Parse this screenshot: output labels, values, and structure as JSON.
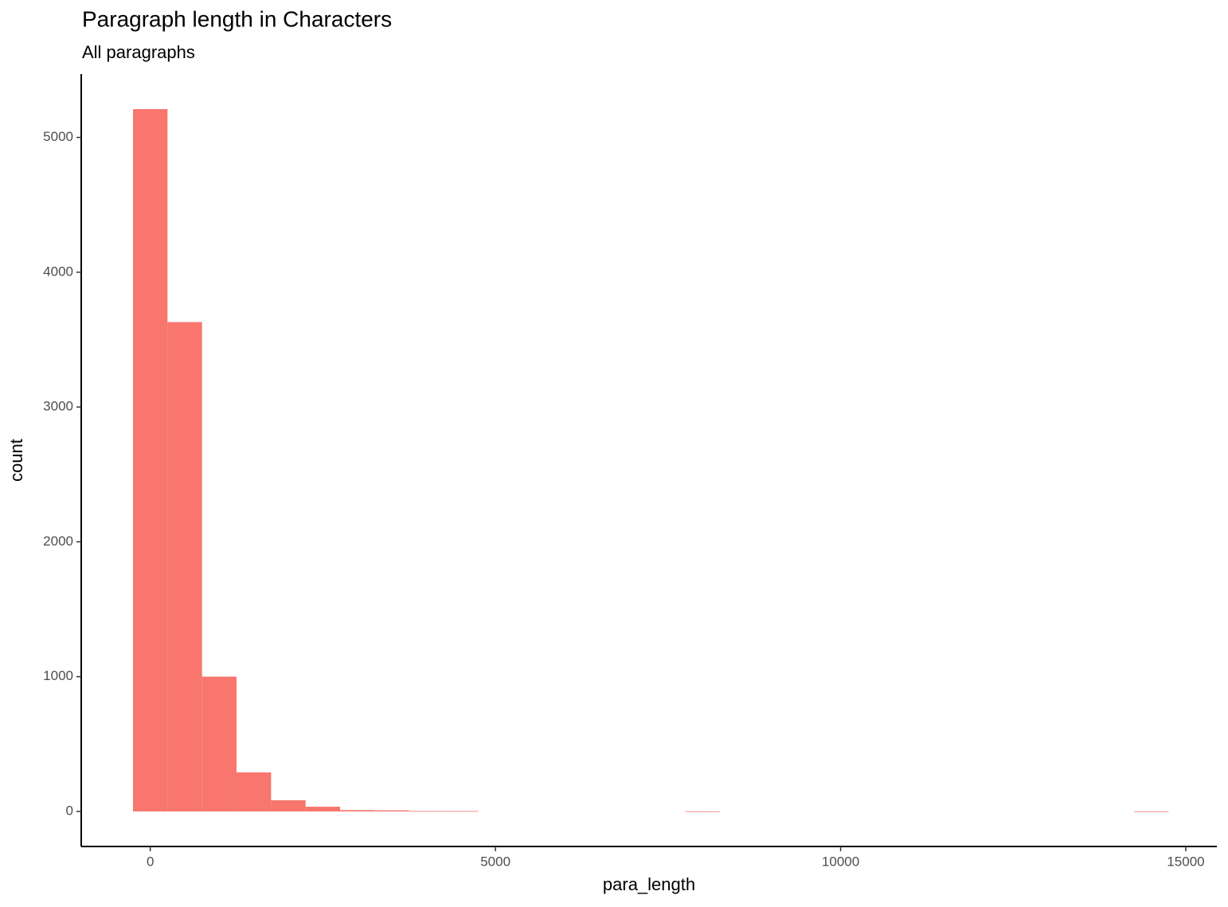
{
  "chart_data": {
    "type": "histogram",
    "title": "Paragraph length in Characters",
    "subtitle": "All paragraphs",
    "x_label": "para_length",
    "y_label": "count",
    "bins": [
      -250,
      250,
      750,
      1250,
      1750,
      2250,
      2750,
      3250,
      3750,
      4250,
      4750,
      5250,
      5750,
      6250,
      6750,
      7250,
      7750,
      8250,
      8750,
      9250,
      9750,
      10250,
      10750,
      11250,
      11750,
      12250,
      12750,
      13250,
      13750,
      14250,
      14750
    ],
    "values": [
      5210,
      3630,
      1000,
      290,
      83,
      35,
      10,
      8,
      3,
      3,
      0,
      0,
      0,
      0,
      0,
      0,
      1,
      0,
      0,
      0,
      0,
      0,
      0,
      0,
      0,
      0,
      0,
      0,
      0,
      1
    ],
    "color": "#f8766d",
    "xlim": [
      -1000,
      15450
    ],
    "xticks": [
      0,
      5000,
      10000,
      15000
    ],
    "ylim": [
      -260,
      5470
    ],
    "yticks": [
      0,
      1000,
      2000,
      3000,
      4000,
      5000
    ],
    "grid": false
  }
}
